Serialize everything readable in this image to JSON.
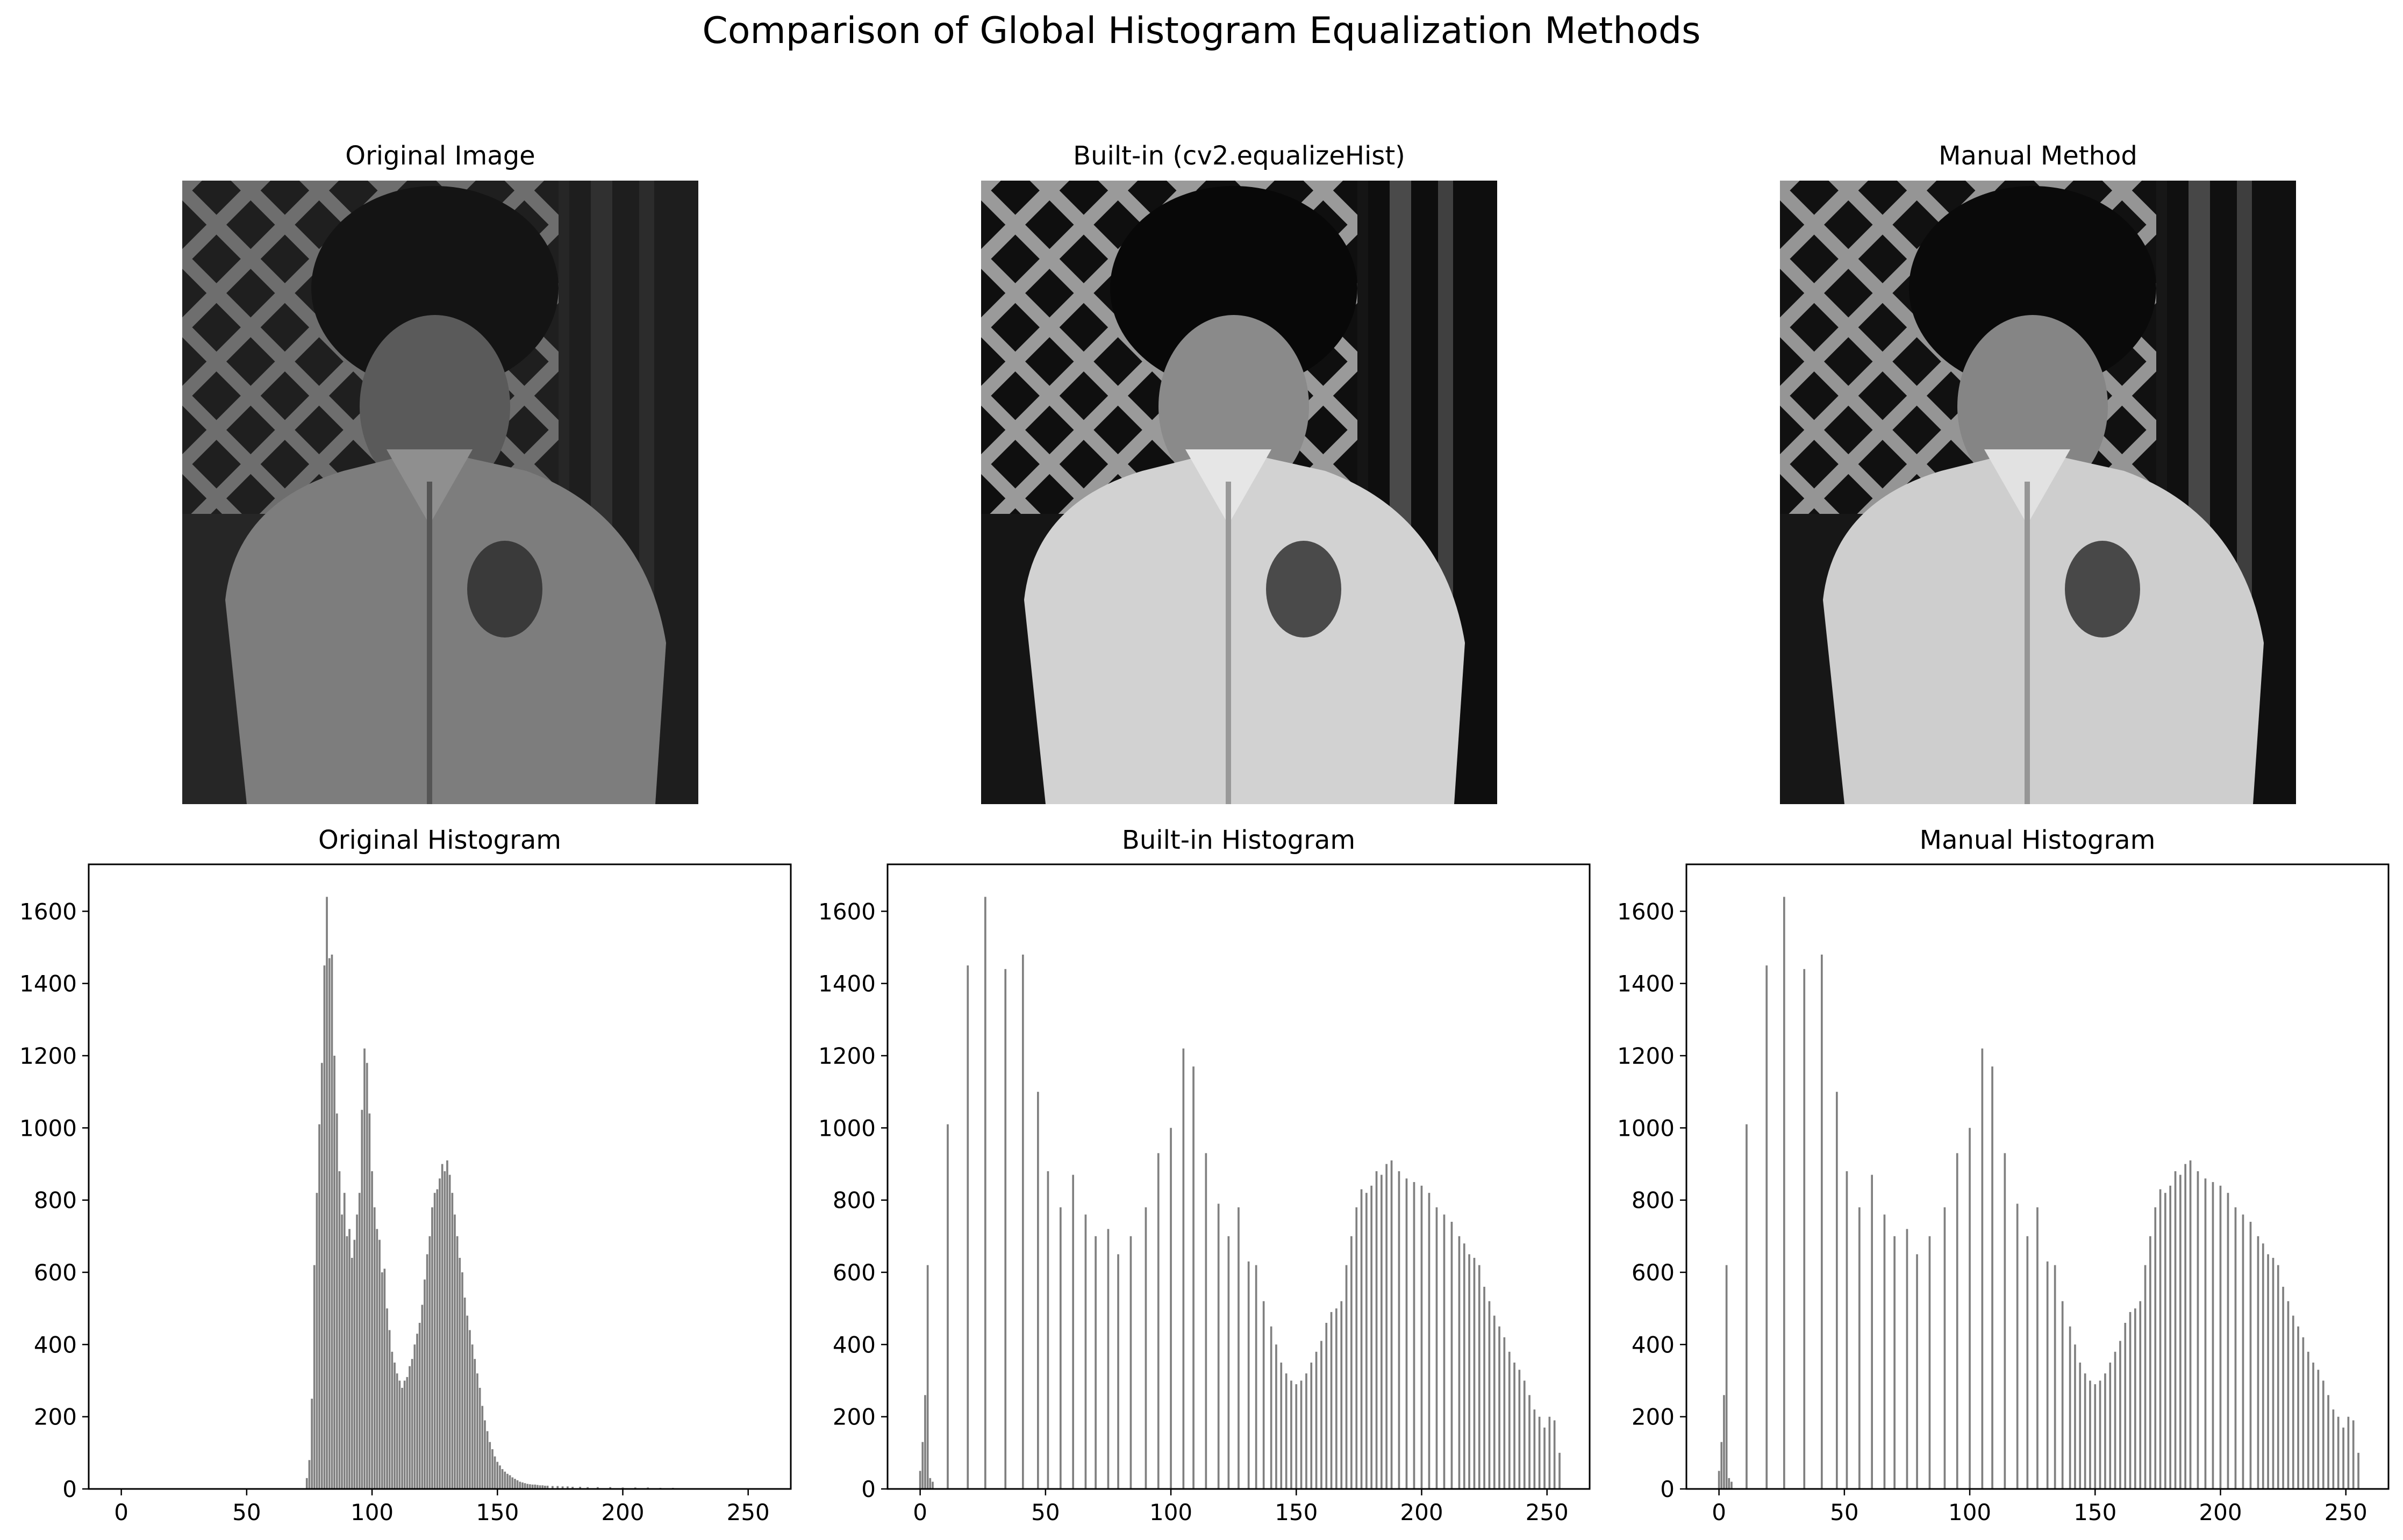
{
  "figure": {
    "title": "Comparison of Global Histogram Equalization Methods"
  },
  "images": [
    {
      "title": "Original Image",
      "variant": "original"
    },
    {
      "title": "Built-in (cv2.equalizeHist)",
      "variant": "equalized"
    },
    {
      "title": "Manual Method",
      "variant": "equalized"
    }
  ],
  "chart_data": [
    {
      "type": "bar",
      "title": "Original Histogram",
      "xlabel": "",
      "ylabel": "",
      "xlim": [
        -13,
        267
      ],
      "ylim": [
        0,
        1730
      ],
      "xticks": [
        0,
        50,
        100,
        150,
        200,
        250
      ],
      "yticks": [
        0,
        200,
        400,
        600,
        800,
        1000,
        1200,
        1400,
        1600
      ],
      "bar_color": "#808080",
      "x": [
        74,
        75,
        76,
        77,
        78,
        79,
        80,
        81,
        82,
        83,
        84,
        85,
        86,
        87,
        88,
        89,
        90,
        91,
        92,
        93,
        94,
        95,
        96,
        97,
        98,
        99,
        100,
        101,
        102,
        103,
        104,
        105,
        106,
        107,
        108,
        109,
        110,
        111,
        112,
        113,
        114,
        115,
        116,
        117,
        118,
        119,
        120,
        121,
        122,
        123,
        124,
        125,
        126,
        127,
        128,
        129,
        130,
        131,
        132,
        133,
        134,
        135,
        136,
        137,
        138,
        139,
        140,
        141,
        142,
        143,
        144,
        145,
        146,
        147,
        148,
        149,
        150,
        151,
        152,
        153,
        154,
        155,
        156,
        157,
        158,
        159,
        160,
        161,
        162,
        163,
        164,
        165,
        166,
        167,
        168,
        169,
        170,
        172,
        174,
        176,
        178,
        180,
        183,
        186,
        190,
        195,
        200,
        205,
        210,
        215,
        220
      ],
      "values": [
        30,
        80,
        250,
        620,
        820,
        1010,
        1180,
        1450,
        1640,
        1470,
        1480,
        1200,
        1040,
        880,
        760,
        820,
        700,
        720,
        640,
        690,
        760,
        820,
        1050,
        1220,
        1180,
        1040,
        880,
        780,
        720,
        690,
        600,
        610,
        500,
        440,
        380,
        350,
        320,
        300,
        280,
        300,
        310,
        340,
        360,
        400,
        430,
        460,
        510,
        580,
        650,
        700,
        780,
        820,
        830,
        860,
        900,
        880,
        910,
        870,
        820,
        760,
        700,
        640,
        600,
        530,
        480,
        440,
        400,
        360,
        320,
        280,
        230,
        190,
        160,
        130,
        110,
        90,
        75,
        65,
        55,
        48,
        42,
        38,
        32,
        28,
        24,
        20,
        18,
        16,
        14,
        13,
        12,
        12,
        11,
        10,
        10,
        9,
        9,
        8,
        8,
        7,
        7,
        6,
        6,
        5,
        5,
        5,
        4,
        4,
        4,
        3,
        3
      ]
    },
    {
      "type": "bar",
      "title": "Built-in Histogram",
      "xlabel": "",
      "ylabel": "",
      "xlim": [
        -13,
        267
      ],
      "ylim": [
        0,
        1730
      ],
      "xticks": [
        0,
        50,
        100,
        150,
        200,
        250
      ],
      "yticks": [
        0,
        200,
        400,
        600,
        800,
        1000,
        1200,
        1400,
        1600
      ],
      "bar_color": "#808080",
      "x": [
        0,
        1,
        2,
        3,
        4,
        5,
        11,
        19,
        26,
        34,
        41,
        47,
        51,
        56,
        61,
        66,
        70,
        75,
        79,
        84,
        90,
        95,
        100,
        105,
        109,
        114,
        119,
        123,
        127,
        131,
        134,
        137,
        140,
        142,
        144,
        146,
        148,
        150,
        152,
        154,
        156,
        158,
        160,
        162,
        164,
        166,
        168,
        170,
        172,
        174,
        176,
        178,
        180,
        182,
        184,
        186,
        188,
        191,
        194,
        197,
        200,
        203,
        206,
        209,
        212,
        215,
        217,
        219,
        221,
        223,
        225,
        227,
        229,
        231,
        233,
        235,
        237,
        239,
        241,
        243,
        245,
        247,
        249,
        251,
        253,
        255
      ],
      "values": [
        50,
        130,
        260,
        620,
        30,
        20,
        1010,
        1450,
        1640,
        1440,
        1480,
        1100,
        880,
        780,
        870,
        760,
        700,
        720,
        650,
        700,
        780,
        930,
        1000,
        1220,
        1170,
        930,
        790,
        700,
        780,
        630,
        620,
        520,
        450,
        400,
        350,
        320,
        300,
        290,
        300,
        320,
        350,
        380,
        410,
        460,
        490,
        500,
        520,
        620,
        700,
        780,
        830,
        820,
        840,
        880,
        870,
        900,
        910,
        880,
        860,
        850,
        840,
        820,
        780,
        760,
        740,
        700,
        680,
        650,
        640,
        620,
        560,
        520,
        480,
        450,
        420,
        380,
        350,
        330,
        300,
        260,
        220,
        200,
        170,
        200,
        190,
        100
      ]
    },
    {
      "type": "bar",
      "title": "Manual Histogram",
      "xlabel": "",
      "ylabel": "",
      "xlim": [
        -13,
        267
      ],
      "ylim": [
        0,
        1730
      ],
      "xticks": [
        0,
        50,
        100,
        150,
        200,
        250
      ],
      "yticks": [
        0,
        200,
        400,
        600,
        800,
        1000,
        1200,
        1400,
        1600
      ],
      "bar_color": "#808080",
      "x": [
        0,
        1,
        2,
        3,
        4,
        5,
        11,
        19,
        26,
        34,
        41,
        47,
        51,
        56,
        61,
        66,
        70,
        75,
        79,
        84,
        90,
        95,
        100,
        105,
        109,
        114,
        119,
        123,
        127,
        131,
        134,
        137,
        140,
        142,
        144,
        146,
        148,
        150,
        152,
        154,
        156,
        158,
        160,
        162,
        164,
        166,
        168,
        170,
        172,
        174,
        176,
        178,
        180,
        182,
        184,
        186,
        188,
        191,
        194,
        197,
        200,
        203,
        206,
        209,
        212,
        215,
        217,
        219,
        221,
        223,
        225,
        227,
        229,
        231,
        233,
        235,
        237,
        239,
        241,
        243,
        245,
        247,
        249,
        251,
        253,
        255
      ],
      "values": [
        50,
        130,
        260,
        620,
        30,
        20,
        1010,
        1450,
        1640,
        1440,
        1480,
        1100,
        880,
        780,
        870,
        760,
        700,
        720,
        650,
        700,
        780,
        930,
        1000,
        1220,
        1170,
        930,
        790,
        700,
        780,
        630,
        620,
        520,
        450,
        400,
        350,
        320,
        300,
        290,
        300,
        320,
        350,
        380,
        410,
        460,
        490,
        500,
        520,
        620,
        700,
        780,
        830,
        820,
        840,
        880,
        870,
        900,
        910,
        880,
        860,
        850,
        840,
        820,
        780,
        760,
        740,
        700,
        680,
        650,
        640,
        620,
        560,
        520,
        480,
        450,
        420,
        380,
        350,
        330,
        300,
        260,
        220,
        200,
        170,
        200,
        190,
        100
      ]
    }
  ]
}
